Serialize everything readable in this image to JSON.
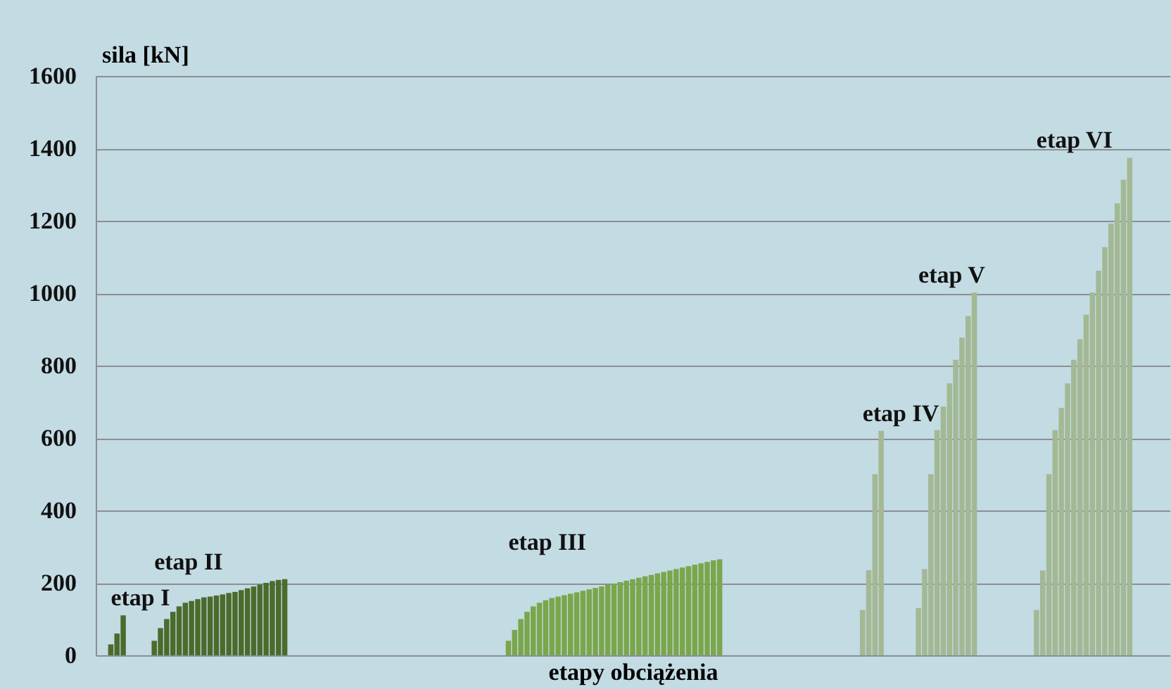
{
  "chart_data": {
    "type": "bar",
    "xlabel": "etapy obciążenia",
    "ylabel": "sila [kN]",
    "categories": [
      null,
      null,
      null,
      null,
      null,
      null,
      null,
      null,
      null,
      null,
      null,
      null,
      null,
      null,
      null,
      null,
      null,
      null,
      null,
      null,
      null,
      null,
      null,
      null,
      null,
      null,
      null,
      null,
      null,
      null,
      null,
      null,
      null,
      null,
      null,
      null,
      null,
      null,
      null,
      null,
      null,
      null,
      null,
      null,
      null,
      null,
      null,
      null,
      null,
      null,
      null,
      null,
      null,
      null,
      null,
      null,
      null,
      null,
      null,
      null,
      null,
      null,
      null,
      null,
      null,
      null,
      null,
      null,
      null,
      null,
      null,
      null,
      null,
      null,
      null,
      null,
      null,
      null,
      null,
      null,
      null,
      null,
      null,
      null,
      null,
      null,
      null,
      null,
      null,
      null,
      null,
      null,
      null,
      null,
      null,
      null,
      null,
      null,
      null,
      null,
      null,
      null,
      null,
      null,
      null,
      null,
      null,
      null,
      null,
      null,
      null,
      null,
      null,
      null,
      null,
      null,
      null,
      null,
      null,
      null,
      null,
      null,
      null,
      null,
      null,
      null,
      null,
      null,
      null,
      null,
      null,
      null,
      null,
      null,
      null,
      null,
      null,
      null,
      null,
      null,
      null,
      null,
      null,
      null,
      null,
      null,
      null,
      null,
      null,
      null,
      null,
      null,
      null,
      null,
      null,
      null,
      null,
      null,
      null,
      null,
      null,
      null,
      null,
      null,
      null,
      null,
      null,
      null,
      null,
      null,
      null,
      null,
      null
    ],
    "values": [
      0,
      0,
      30,
      60,
      110,
      0,
      0,
      0,
      0,
      40,
      75,
      100,
      120,
      135,
      145,
      150,
      155,
      160,
      162,
      165,
      168,
      172,
      175,
      180,
      185,
      190,
      195,
      200,
      205,
      208,
      210,
      0,
      0,
      0,
      0,
      0,
      0,
      0,
      0,
      0,
      0,
      0,
      0,
      0,
      0,
      0,
      0,
      0,
      0,
      0,
      0,
      0,
      0,
      0,
      0,
      0,
      0,
      0,
      0,
      0,
      0,
      0,
      0,
      0,
      0,
      0,
      40,
      70,
      100,
      120,
      135,
      145,
      152,
      158,
      162,
      166,
      170,
      174,
      178,
      182,
      186,
      190,
      194,
      198,
      202,
      206,
      210,
      214,
      218,
      222,
      226,
      230,
      234,
      238,
      242,
      246,
      250,
      254,
      258,
      262,
      265,
      0,
      0,
      0,
      0,
      0,
      0,
      0,
      0,
      0,
      0,
      0,
      0,
      0,
      0,
      0,
      0,
      0,
      0,
      0,
      0,
      0,
      0,
      125,
      235,
      500,
      620,
      0,
      0,
      0,
      0,
      0,
      130,
      238,
      500,
      622,
      687,
      751,
      816,
      877,
      937,
      1002,
      0,
      0,
      0,
      0,
      0,
      0,
      0,
      0,
      0,
      125,
      234,
      500,
      622,
      683,
      751,
      816,
      873,
      941,
      1002,
      1062,
      1127,
      1192,
      1248,
      1313,
      1374,
      0,
      0,
      0,
      0,
      0,
      0
    ],
    "colors": [
      "#4b6b2c",
      "#4b6b2c",
      "#4b6b2c",
      "#4b6b2c",
      "#4b6b2c",
      "#4b6b2c",
      "#4b6b2c",
      "#4b6b2c",
      "#4b6b2c",
      "#4b6b2c",
      "#4b6b2c",
      "#4b6b2c",
      "#4b6b2c",
      "#4b6b2c",
      "#4b6b2c",
      "#4b6b2c",
      "#4b6b2c",
      "#4b6b2c",
      "#4b6b2c",
      "#4b6b2c",
      "#4b6b2c",
      "#4b6b2c",
      "#4b6b2c",
      "#4b6b2c",
      "#4b6b2c",
      "#4b6b2c",
      "#4b6b2c",
      "#4b6b2c",
      "#4b6b2c",
      "#4b6b2c",
      "#4b6b2c",
      "#7ba64c",
      "#7ba64c",
      "#7ba64c",
      "#7ba64c",
      "#7ba64c",
      "#7ba64c",
      "#7ba64c",
      "#7ba64c",
      "#7ba64c",
      "#7ba64c",
      "#7ba64c",
      "#7ba64c",
      "#7ba64c",
      "#7ba64c",
      "#7ba64c",
      "#7ba64c",
      "#7ba64c",
      "#7ba64c",
      "#7ba64c",
      "#7ba64c",
      "#7ba64c",
      "#7ba64c",
      "#7ba64c",
      "#7ba64c",
      "#7ba64c",
      "#7ba64c",
      "#7ba64c",
      "#7ba64c",
      "#7ba64c",
      "#7ba64c",
      "#7ba64c",
      "#7ba64c",
      "#7ba64c",
      "#7ba64c",
      "#7ba64c",
      "#7ba64c",
      "#7ba64c",
      "#7ba64c",
      "#7ba64c",
      "#7ba64c",
      "#7ba64c",
      "#7ba64c",
      "#7ba64c",
      "#7ba64c",
      "#7ba64c",
      "#7ba64c",
      "#7ba64c",
      "#7ba64c",
      "#7ba64c",
      "#7ba64c",
      "#7ba64c",
      "#7ba64c",
      "#7ba64c",
      "#7ba64c",
      "#7ba64c",
      "#7ba64c",
      "#7ba64c",
      "#7ba64c",
      "#7ba64c",
      "#7ba64c",
      "#7ba64c",
      "#7ba64c",
      "#7ba64c",
      "#7ba64c",
      "#7ba64c",
      "#7ba64c",
      "#7ba64c",
      "#7ba64c",
      "#7ba64c",
      "#7ba64c",
      "#a3b894",
      "#a3b894",
      "#a3b894",
      "#a3b894",
      "#a3b894",
      "#a3b894",
      "#a3b894",
      "#a3b894",
      "#a3b894",
      "#a3b894",
      "#a3b894",
      "#a3b894",
      "#a3b894",
      "#a3b894",
      "#a3b894",
      "#a3b894",
      "#a3b894",
      "#a3b894",
      "#a3b894",
      "#a3b894",
      "#a3b894",
      "#a3b894",
      "#a3b894",
      "#a3b894",
      "#a3b894",
      "#a3b894",
      "#a3b894",
      "#a3b894",
      "#a3b894",
      "#a3b894",
      "#a3b894",
      "#a3b894",
      "#a3b894",
      "#a3b894",
      "#a3b894",
      "#a3b894",
      "#a3b894",
      "#a3b894",
      "#a3b894",
      "#a3b894",
      "#a3b894",
      "#a3b894",
      "#a3b894",
      "#a3b894",
      "#a3b894",
      "#a3b894",
      "#a3b894",
      "#a3b894",
      "#a3b894",
      "#a3b894",
      "#a3b894",
      "#a3b894",
      "#a3b894",
      "#a3b894",
      "#a3b894",
      "#a3b894",
      "#a3b894",
      "#a3b894",
      "#a3b894",
      "#a3b894",
      "#a3b894",
      "#a3b894",
      "#a3b894",
      "#a3b894",
      "#a3b894",
      "#a3b894",
      "#a3b894",
      "#a3b894",
      "#a3b894",
      "#a3b894",
      "#a3b894",
      "#a3b894"
    ],
    "ylim": [
      0,
      1600
    ],
    "yticks": [
      0,
      200,
      400,
      600,
      800,
      1000,
      1200,
      1400,
      1600
    ],
    "grid": "y",
    "tick_labels": "y",
    "annotations": [
      "etap I",
      "etap II",
      "etap III",
      "etap IV",
      "etap V",
      "etap VI"
    ]
  }
}
